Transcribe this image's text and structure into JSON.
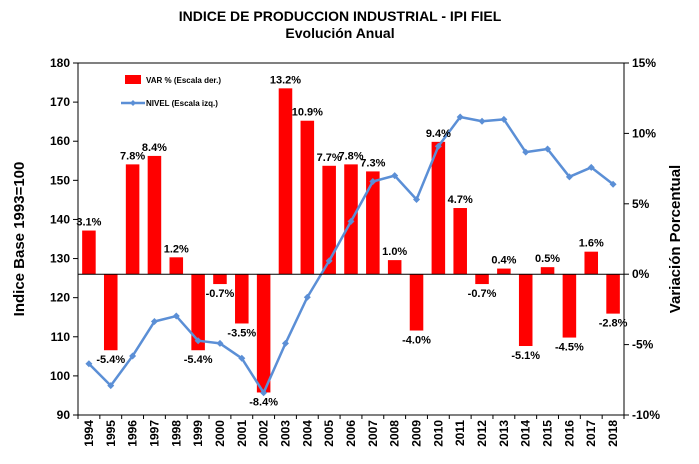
{
  "chart_data": {
    "type": "bar+line",
    "title": "INDICE DE PRODUCCION INDUSTRIAL - IPI FIEL",
    "subtitle": "Evolución Anual",
    "ylabel_left": "Indice Base 1993=100",
    "ylabel_right": "Variación Porcentual",
    "ylim_left": [
      90,
      180
    ],
    "ylim_right": [
      -10,
      15
    ],
    "left_ticks": [
      "90",
      "100",
      "110",
      "120",
      "130",
      "140",
      "150",
      "160",
      "170",
      "180"
    ],
    "right_ticks": [
      "-10%",
      "-5%",
      "0%",
      "5%",
      "10%",
      "15%"
    ],
    "categories": [
      "1994",
      "1995",
      "1996",
      "1997",
      "1998",
      "1999",
      "2000",
      "2001",
      "2002",
      "2003",
      "2004",
      "2005",
      "2006",
      "2007",
      "2008",
      "2009",
      "2010",
      "2011",
      "2012",
      "2013",
      "2014",
      "2015",
      "2016",
      "2017",
      "2018"
    ],
    "series": [
      {
        "name": "VAR % (Escala der.)",
        "type": "bar",
        "axis": "right",
        "color": "#ff0000",
        "values": [
          3.1,
          -5.4,
          7.8,
          8.4,
          1.2,
          -5.4,
          -0.7,
          -3.5,
          -8.4,
          13.2,
          10.9,
          7.7,
          7.8,
          7.3,
          1.0,
          -4.0,
          9.4,
          4.7,
          -0.7,
          0.4,
          -5.1,
          0.5,
          -4.5,
          1.6,
          -2.8
        ],
        "labels": [
          "3.1%",
          "-5.4%",
          "7.8%",
          "8.4%",
          "1.2%",
          "-5.4%",
          "-0.7%",
          "-3.5%",
          "-8.4%",
          "13.2%",
          "10.9%",
          "7.7%",
          "7.8%",
          "7.3%",
          "1.0%",
          "-4.0%",
          "9.4%",
          "4.7%",
          "-0.7%",
          "0.4%",
          "-5.1%",
          "0.5%",
          "-4.5%",
          "1.6%",
          "-2.8%"
        ]
      },
      {
        "name": "NIVEL (Escala izq.)",
        "type": "line",
        "axis": "left",
        "color": "#5b8fd6",
        "values": [
          103.1,
          97.5,
          105.1,
          113.9,
          115.3,
          109.0,
          108.3,
          104.5,
          95.7,
          108.3,
          120.1,
          129.4,
          139.5,
          149.7,
          151.2,
          145.1,
          158.7,
          166.2,
          165.1,
          165.6,
          157.2,
          158.0,
          150.9,
          153.3,
          149.0
        ]
      }
    ],
    "grid": false,
    "legend_position": "top-left"
  }
}
